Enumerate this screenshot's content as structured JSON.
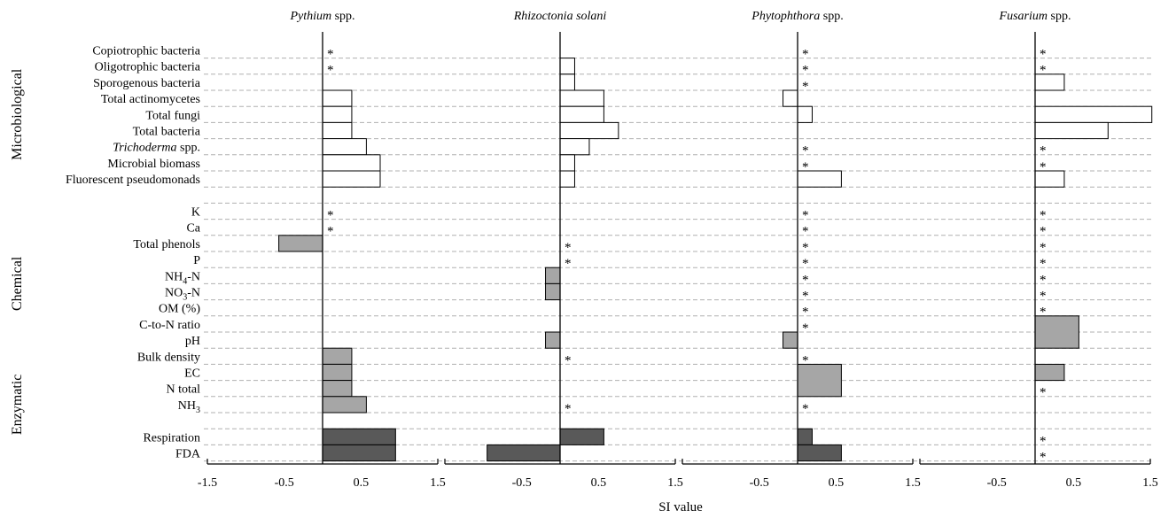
{
  "chart_data": {
    "type": "bar",
    "orientation": "horizontal",
    "x_axis_label": "SI value",
    "xlim": [
      -1.5,
      1.5
    ],
    "xticks": [
      "-1.5",
      "-0.5",
      "0.5",
      "1.5"
    ],
    "groups": [
      {
        "name": "Microbiological",
        "rows": [
          0,
          1,
          2,
          3,
          4,
          5,
          6,
          7,
          8
        ]
      },
      {
        "name": "Chemical",
        "rows": [
          9,
          10,
          11,
          12,
          13,
          14,
          15,
          16,
          17,
          18,
          19,
          20
        ]
      },
      {
        "name": "Enzymatic",
        "rows": [
          21,
          22,
          23
        ]
      }
    ],
    "category_colors": {
      "Microbiological": "#ffffff",
      "Chemical": "#a6a6a6",
      "Enzymatic": "#595959"
    },
    "rows": [
      {
        "label": "Copiotrophic bacteria",
        "category": "Microbiological"
      },
      {
        "label": "Oligotrophic bacteria",
        "category": "Microbiological"
      },
      {
        "label": "Sporogenous bacteria",
        "category": "Microbiological"
      },
      {
        "label": "Total actinomycetes",
        "category": "Microbiological"
      },
      {
        "label": "Total fungi",
        "category": "Microbiological"
      },
      {
        "label": "Total bacteria",
        "category": "Microbiological"
      },
      {
        "label": "Trichoderma spp.",
        "category": "Microbiological"
      },
      {
        "label": "Microbial biomass",
        "category": "Microbiological"
      },
      {
        "label": "Fluorescent pseudomonads",
        "category": "Microbiological"
      },
      {
        "label": "",
        "category": "spacer"
      },
      {
        "label": "K",
        "category": "Chemical"
      },
      {
        "label": "Ca",
        "category": "Chemical"
      },
      {
        "label": "Total phenols",
        "category": "Chemical"
      },
      {
        "label": "P",
        "category": "Chemical"
      },
      {
        "label": "NH4-N",
        "category": "Chemical"
      },
      {
        "label": "NO3-N",
        "category": "Chemical"
      },
      {
        "label": "OM (%)",
        "category": "Chemical"
      },
      {
        "label": "C-to-N ratio",
        "category": "Chemical"
      },
      {
        "label": "pH",
        "category": "Chemical"
      },
      {
        "label": "Bulk density",
        "category": "Chemical"
      },
      {
        "label": "EC",
        "category": "Chemical"
      },
      {
        "label": "N total",
        "category": "Chemical"
      },
      {
        "label": "NH3",
        "category": "Chemical"
      },
      {
        "label": "",
        "category": "spacer"
      },
      {
        "label": "Respiration",
        "category": "Enzymatic"
      },
      {
        "label": "FDA",
        "category": "Enzymatic"
      }
    ],
    "panels": [
      {
        "title": "Pythium spp.",
        "asterisk_rows": [
          0,
          1,
          10,
          11
        ],
        "bars": [
          {
            "start": 3,
            "end": 4,
            "value": 0.38,
            "category": "Microbiological"
          },
          {
            "start": 4,
            "end": 5,
            "value": 0.38,
            "category": "Microbiological"
          },
          {
            "start": 5,
            "end": 6,
            "value": 0.38,
            "category": "Microbiological"
          },
          {
            "start": 6,
            "end": 7,
            "value": 0.57,
            "category": "Microbiological"
          },
          {
            "start": 7,
            "end": 8,
            "value": 0.75,
            "category": "Microbiological"
          },
          {
            "start": 8,
            "end": 9,
            "value": 0.75,
            "category": "Microbiological"
          },
          {
            "start": 12,
            "end": 13,
            "value": -0.57,
            "category": "Chemical"
          },
          {
            "start": 19,
            "end": 20,
            "value": 0.38,
            "category": "Chemical"
          },
          {
            "start": 20,
            "end": 21,
            "value": 0.38,
            "category": "Chemical"
          },
          {
            "start": 21,
            "end": 22,
            "value": 0.38,
            "category": "Chemical"
          },
          {
            "start": 22,
            "end": 23,
            "value": 0.57,
            "category": "Chemical"
          },
          {
            "start": 24,
            "end": 25,
            "value": 0.95,
            "category": "Enzymatic"
          },
          {
            "start": 25,
            "end": 26,
            "value": 0.95,
            "category": "Enzymatic"
          }
        ]
      },
      {
        "title": "Rhizoctonia solani",
        "asterisk_rows": [
          12,
          13,
          19,
          22
        ],
        "bars": [
          {
            "start": 1,
            "end": 2,
            "value": 0.19,
            "category": "Microbiological"
          },
          {
            "start": 2,
            "end": 3,
            "value": 0.19,
            "category": "Microbiological"
          },
          {
            "start": 3,
            "end": 4,
            "value": 0.57,
            "category": "Microbiological"
          },
          {
            "start": 4,
            "end": 5,
            "value": 0.57,
            "category": "Microbiological"
          },
          {
            "start": 5,
            "end": 6,
            "value": 0.76,
            "category": "Microbiological"
          },
          {
            "start": 6,
            "end": 7,
            "value": 0.38,
            "category": "Microbiological"
          },
          {
            "start": 7,
            "end": 8,
            "value": 0.19,
            "category": "Microbiological"
          },
          {
            "start": 8,
            "end": 9,
            "value": 0.19,
            "category": "Microbiological"
          },
          {
            "start": 14,
            "end": 15,
            "value": -0.19,
            "category": "Chemical"
          },
          {
            "start": 15,
            "end": 16,
            "value": -0.19,
            "category": "Chemical"
          },
          {
            "start": 18,
            "end": 19,
            "value": -0.19,
            "category": "Chemical"
          },
          {
            "start": 24,
            "end": 25,
            "value": 0.57,
            "category": "Enzymatic"
          },
          {
            "start": 25,
            "end": 26,
            "value": -0.95,
            "category": "Enzymatic"
          }
        ]
      },
      {
        "title": "Phytophthora spp.",
        "asterisk_rows": [
          0,
          1,
          2,
          6,
          7,
          10,
          11,
          12,
          13,
          14,
          15,
          16,
          17,
          19,
          22
        ],
        "bars": [
          {
            "start": 3,
            "end": 4,
            "value": -0.19,
            "category": "Microbiological"
          },
          {
            "start": 4,
            "end": 5,
            "value": 0.19,
            "category": "Microbiological"
          },
          {
            "start": 8,
            "end": 9,
            "value": 0.57,
            "category": "Microbiological"
          },
          {
            "start": 18,
            "end": 19,
            "value": -0.19,
            "category": "Chemical"
          },
          {
            "start": 20,
            "end": 22,
            "value": 0.57,
            "category": "Chemical"
          },
          {
            "start": 24,
            "end": 25,
            "value": 0.19,
            "category": "Enzymatic"
          },
          {
            "start": 25,
            "end": 26,
            "value": 0.57,
            "category": "Enzymatic"
          }
        ]
      },
      {
        "title": "Fusarium spp.",
        "asterisk_rows": [
          0,
          1,
          6,
          7,
          10,
          11,
          12,
          13,
          14,
          15,
          16,
          21,
          24,
          25
        ],
        "bars": [
          {
            "start": 2,
            "end": 3,
            "value": 0.38,
            "category": "Microbiological"
          },
          {
            "start": 4,
            "end": 5,
            "value": 1.52,
            "category": "Microbiological"
          },
          {
            "start": 5,
            "end": 6,
            "value": 0.95,
            "category": "Microbiological"
          },
          {
            "start": 8,
            "end": 9,
            "value": 0.38,
            "category": "Microbiological"
          },
          {
            "start": 17,
            "end": 19,
            "value": 0.57,
            "category": "Chemical"
          },
          {
            "start": 20,
            "end": 21,
            "value": 0.38,
            "category": "Chemical"
          }
        ]
      }
    ]
  }
}
